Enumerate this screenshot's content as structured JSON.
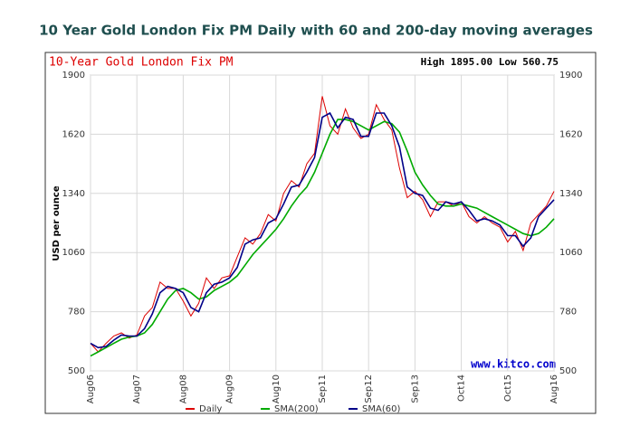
{
  "chart_data": {
    "type": "line",
    "title": "10 Year Gold London Fix PM Daily with 60 and 200-day moving averages",
    "subtitle": "10-Year Gold London Fix PM",
    "annotations": [
      "High 1895.00 Low 560.75",
      "www.kitco.com"
    ],
    "y_label": "USD per ounce",
    "categories": [
      "Aug06",
      null,
      null,
      null,
      null,
      null,
      "Aug07",
      null,
      null,
      null,
      null,
      null,
      "Aug08",
      null,
      null,
      null,
      null,
      null,
      "Aug09",
      null,
      null,
      null,
      null,
      null,
      "Aug10",
      null,
      null,
      null,
      null,
      null,
      "Sep11",
      null,
      null,
      null,
      null,
      null,
      "Sep12",
      null,
      null,
      null,
      null,
      null,
      "Sep13",
      null,
      null,
      null,
      null,
      null,
      "Oct14",
      null,
      null,
      null,
      null,
      null,
      "Oct15",
      null,
      null,
      null,
      null,
      null,
      "Aug16"
    ],
    "series": [
      {
        "name": "Daily",
        "color": "#dd0000",
        "values": [
          630,
          590,
          630,
          665,
          680,
          655,
          670,
          760,
          800,
          920,
          890,
          890,
          830,
          760,
          820,
          940,
          890,
          940,
          950,
          1040,
          1130,
          1100,
          1150,
          1240,
          1210,
          1340,
          1400,
          1370,
          1480,
          1530,
          1800,
          1660,
          1620,
          1740,
          1650,
          1600,
          1620,
          1760,
          1690,
          1640,
          1460,
          1320,
          1350,
          1310,
          1230,
          1300,
          1300,
          1280,
          1300,
          1230,
          1200,
          1230,
          1200,
          1180,
          1110,
          1160,
          1070,
          1200,
          1240,
          1280,
          1350
        ]
      },
      {
        "name": "SMA(200)",
        "color": "#00aa00",
        "values": [
          570,
          590,
          610,
          630,
          650,
          660,
          665,
          680,
          720,
          780,
          840,
          880,
          890,
          870,
          840,
          850,
          880,
          900,
          920,
          950,
          1000,
          1050,
          1090,
          1130,
          1170,
          1220,
          1280,
          1330,
          1370,
          1440,
          1530,
          1620,
          1690,
          1690,
          1680,
          1660,
          1640,
          1660,
          1680,
          1670,
          1630,
          1540,
          1440,
          1380,
          1330,
          1290,
          1280,
          1280,
          1290,
          1280,
          1270,
          1250,
          1230,
          1210,
          1190,
          1170,
          1150,
          1140,
          1150,
          1180,
          1220
        ]
      },
      {
        "name": "SMA(60)",
        "color": "#000088",
        "values": [
          630,
          610,
          615,
          645,
          670,
          665,
          665,
          700,
          770,
          870,
          900,
          890,
          870,
          800,
          780,
          870,
          910,
          920,
          940,
          990,
          1100,
          1120,
          1130,
          1200,
          1220,
          1290,
          1370,
          1380,
          1440,
          1510,
          1700,
          1720,
          1650,
          1700,
          1690,
          1610,
          1610,
          1720,
          1720,
          1660,
          1560,
          1370,
          1340,
          1330,
          1270,
          1260,
          1300,
          1290,
          1300,
          1260,
          1210,
          1220,
          1210,
          1190,
          1140,
          1140,
          1090,
          1130,
          1230,
          1270,
          1310
        ]
      }
    ],
    "ylim": [
      500,
      1900
    ],
    "yticks": [
      500,
      780,
      1060,
      1340,
      1620,
      1900
    ],
    "grid": true,
    "legend": "bottom"
  }
}
